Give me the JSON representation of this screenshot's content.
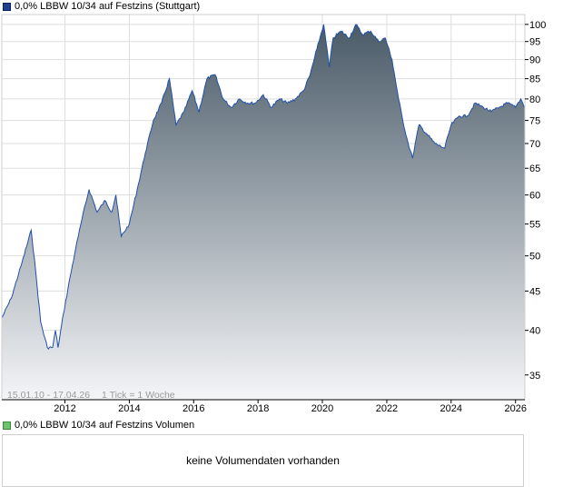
{
  "price_panel": {
    "legend_label": "0,0% LBBW 10/34 auf Festzins (Stuttgart)",
    "range_note": "15.01.10 - 17.04.26",
    "tick_note": "1 Tick = 1 Woche"
  },
  "volume_panel": {
    "legend_label": "0,0% LBBW 10/34 auf Festzins Volumen",
    "empty_message": "keine Volumendaten vorhanden"
  },
  "colors": {
    "line": "#2150a8",
    "fill_top": "#4a5b68",
    "fill_bottom": "#f4f5f7",
    "grid": "#dedede",
    "axis": "#000000"
  },
  "chart_data": {
    "type": "area",
    "scale": "log",
    "ylim": [
      32.5,
      103
    ],
    "y_ticks": [
      35,
      40,
      45,
      50,
      55,
      60,
      65,
      70,
      75,
      80,
      85,
      90,
      95,
      100
    ],
    "xlim": [
      "2010-01-15",
      "2026-04-17"
    ],
    "x_ticks": [
      "2012",
      "2014",
      "2016",
      "2018",
      "2020",
      "2022",
      "2024",
      "2026"
    ],
    "grid": true,
    "series": [
      {
        "x": [
          "2010-01-15",
          "2010-05-01",
          "2010-09-01",
          "2010-12-15",
          "2011-02-01",
          "2011-04-01",
          "2011-06-15",
          "2011-08-15",
          "2011-09-15",
          "2011-10-15",
          "2011-12-15",
          "2012-03-01",
          "2012-05-01",
          "2012-06-01",
          "2012-07-15",
          "2012-10-01",
          "2013-01-01",
          "2013-04-01",
          "2013-06-15",
          "2013-08-01",
          "2013-10-01",
          "2014-01-01",
          "2014-04-01",
          "2014-07-01",
          "2014-10-01",
          "2015-01-01",
          "2015-04-01",
          "2015-06-15",
          "2015-09-15",
          "2015-12-15",
          "2016-03-01",
          "2016-06-01",
          "2016-09-01",
          "2016-12-01",
          "2017-03-01",
          "2017-06-01",
          "2017-09-01",
          "2017-12-01",
          "2018-03-01",
          "2018-06-01",
          "2018-09-01",
          "2018-12-01",
          "2019-03-01",
          "2019-06-01",
          "2019-08-15",
          "2019-11-01",
          "2020-01-15",
          "2020-03-20",
          "2020-05-01",
          "2020-08-01",
          "2020-11-01",
          "2021-01-15",
          "2021-04-01",
          "2021-07-01",
          "2021-10-01",
          "2021-12-15",
          "2022-03-01",
          "2022-05-15",
          "2022-07-01",
          "2022-09-01",
          "2022-10-20",
          "2023-01-01",
          "2023-04-01",
          "2023-07-01",
          "2023-10-20",
          "2024-01-01",
          "2024-04-01",
          "2024-07-01",
          "2024-10-01",
          "2025-01-01",
          "2025-04-01",
          "2025-07-01",
          "2025-10-01",
          "2026-01-01",
          "2026-03-01",
          "2026-04-17"
        ],
        "values": [
          41.5,
          44,
          49,
          54,
          48,
          41,
          38,
          38,
          40,
          38,
          42,
          47,
          51,
          53,
          56,
          61,
          57,
          59,
          57,
          60,
          53,
          55,
          61,
          68,
          75,
          79,
          85,
          74,
          77,
          82,
          77,
          85,
          86,
          80,
          78,
          80,
          79,
          79,
          81,
          78,
          80,
          79,
          80,
          82,
          86,
          93,
          100,
          88,
          96,
          98,
          96,
          100,
          97,
          98,
          95,
          96,
          90,
          80,
          75,
          70,
          67,
          74,
          72,
          70,
          69,
          74,
          76,
          76,
          79,
          78,
          77,
          78,
          79,
          78,
          80,
          78
        ]
      }
    ]
  }
}
